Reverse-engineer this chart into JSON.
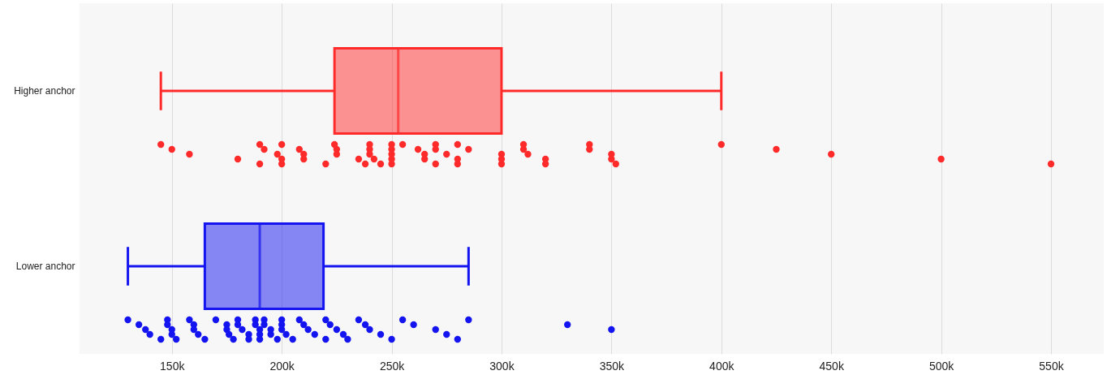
{
  "chart_data": {
    "type": "box",
    "orientation": "horizontal",
    "categories": [
      "Higher anchor",
      "Lower anchor"
    ],
    "colors": [
      "#ff2b2b",
      "#1414f0"
    ],
    "boxes": [
      {
        "low": 145000,
        "q1": 224000,
        "median": 253000,
        "q3": 300000,
        "high": 400000
      },
      {
        "low": 130000,
        "q1": 165000,
        "median": 190000,
        "q3": 219000,
        "high": 285000
      }
    ],
    "series": [
      {
        "type": "scatter",
        "color": "#ff2b2b",
        "x": [
          "Higher anchor",
          "Higher anchor",
          "Higher anchor",
          "Higher anchor",
          "Higher anchor",
          "Higher anchor",
          "Higher anchor",
          "Higher anchor",
          "Higher anchor",
          "Higher anchor",
          "Higher anchor",
          "Higher anchor",
          "Higher anchor",
          "Higher anchor",
          "Higher anchor",
          "Higher anchor",
          "Higher anchor",
          "Higher anchor",
          "Higher anchor",
          "Higher anchor",
          "Higher anchor",
          "Higher anchor",
          "Higher anchor",
          "Higher anchor",
          "Higher anchor",
          "Higher anchor",
          "Higher anchor",
          "Higher anchor",
          "Higher anchor",
          "Higher anchor",
          "Higher anchor",
          "Higher anchor",
          "Higher anchor",
          "Higher anchor",
          "Higher anchor",
          "Higher anchor",
          "Higher anchor",
          "Higher anchor",
          "Higher anchor",
          "Higher anchor",
          "Higher anchor",
          "Higher anchor",
          "Higher anchor",
          "Higher anchor",
          "Higher anchor",
          "Higher anchor",
          "Higher anchor",
          "Higher anchor",
          "Higher anchor",
          "Higher anchor",
          "Higher anchor",
          "Higher anchor",
          "Higher anchor",
          "Higher anchor",
          "Higher anchor",
          "Higher anchor",
          "Higher anchor",
          "Higher anchor",
          "Higher anchor",
          "Higher anchor"
        ],
        "values": [
          145000,
          150000,
          158000,
          180000,
          190000,
          190000,
          192000,
          198000,
          200000,
          200000,
          200000,
          208000,
          210000,
          210000,
          220000,
          224000,
          225000,
          225000,
          235000,
          238000,
          240000,
          240000,
          240000,
          242000,
          245000,
          250000,
          250000,
          250000,
          250000,
          250000,
          255000,
          262000,
          265000,
          265000,
          270000,
          270000,
          270000,
          275000,
          280000,
          280000,
          280000,
          285000,
          300000,
          300000,
          300000,
          310000,
          310000,
          312000,
          320000,
          320000,
          340000,
          340000,
          350000,
          350000,
          352000,
          400000,
          425000,
          450000,
          500000,
          550000
        ]
      },
      {
        "type": "scatter",
        "color": "#1414f0",
        "x": [
          "Lower anchor",
          "Lower anchor",
          "Lower anchor",
          "Lower anchor",
          "Lower anchor",
          "Lower anchor",
          "Lower anchor",
          "Lower anchor",
          "Lower anchor",
          "Lower anchor",
          "Lower anchor",
          "Lower anchor",
          "Lower anchor",
          "Lower anchor",
          "Lower anchor",
          "Lower anchor",
          "Lower anchor",
          "Lower anchor",
          "Lower anchor",
          "Lower anchor",
          "Lower anchor",
          "Lower anchor",
          "Lower anchor",
          "Lower anchor",
          "Lower anchor",
          "Lower anchor",
          "Lower anchor",
          "Lower anchor",
          "Lower anchor",
          "Lower anchor",
          "Lower anchor",
          "Lower anchor",
          "Lower anchor",
          "Lower anchor",
          "Lower anchor",
          "Lower anchor",
          "Lower anchor",
          "Lower anchor",
          "Lower anchor",
          "Lower anchor",
          "Lower anchor",
          "Lower anchor",
          "Lower anchor",
          "Lower anchor",
          "Lower anchor",
          "Lower anchor",
          "Lower anchor",
          "Lower anchor",
          "Lower anchor",
          "Lower anchor",
          "Lower anchor",
          "Lower anchor",
          "Lower anchor",
          "Lower anchor",
          "Lower anchor",
          "Lower anchor",
          "Lower anchor",
          "Lower anchor",
          "Lower anchor",
          "Lower anchor",
          "Lower anchor",
          "Lower anchor",
          "Lower anchor"
        ],
        "values": [
          130000,
          135000,
          138000,
          140000,
          145000,
          148000,
          148000,
          150000,
          150000,
          152000,
          158000,
          160000,
          160000,
          162000,
          165000,
          170000,
          175000,
          175000,
          176000,
          178000,
          180000,
          180000,
          182000,
          185000,
          185000,
          188000,
          188000,
          190000,
          190000,
          190000,
          192000,
          192000,
          195000,
          195000,
          198000,
          200000,
          200000,
          200000,
          202000,
          205000,
          208000,
          210000,
          212000,
          215000,
          220000,
          220000,
          222000,
          225000,
          228000,
          230000,
          235000,
          238000,
          240000,
          245000,
          250000,
          255000,
          260000,
          270000,
          275000,
          280000,
          285000,
          330000,
          350000
        ]
      }
    ],
    "xlim": [
      108000,
      574000
    ],
    "xticks": [
      {
        "value": 150000,
        "label": "150k"
      },
      {
        "value": 200000,
        "label": "200k"
      },
      {
        "value": 250000,
        "label": "250k"
      },
      {
        "value": 300000,
        "label": "300k"
      },
      {
        "value": 350000,
        "label": "350k"
      },
      {
        "value": 400000,
        "label": "400k"
      },
      {
        "value": 450000,
        "label": "450k"
      },
      {
        "value": 500000,
        "label": "500k"
      },
      {
        "value": 550000,
        "label": "550k"
      }
    ],
    "grid": "x"
  }
}
